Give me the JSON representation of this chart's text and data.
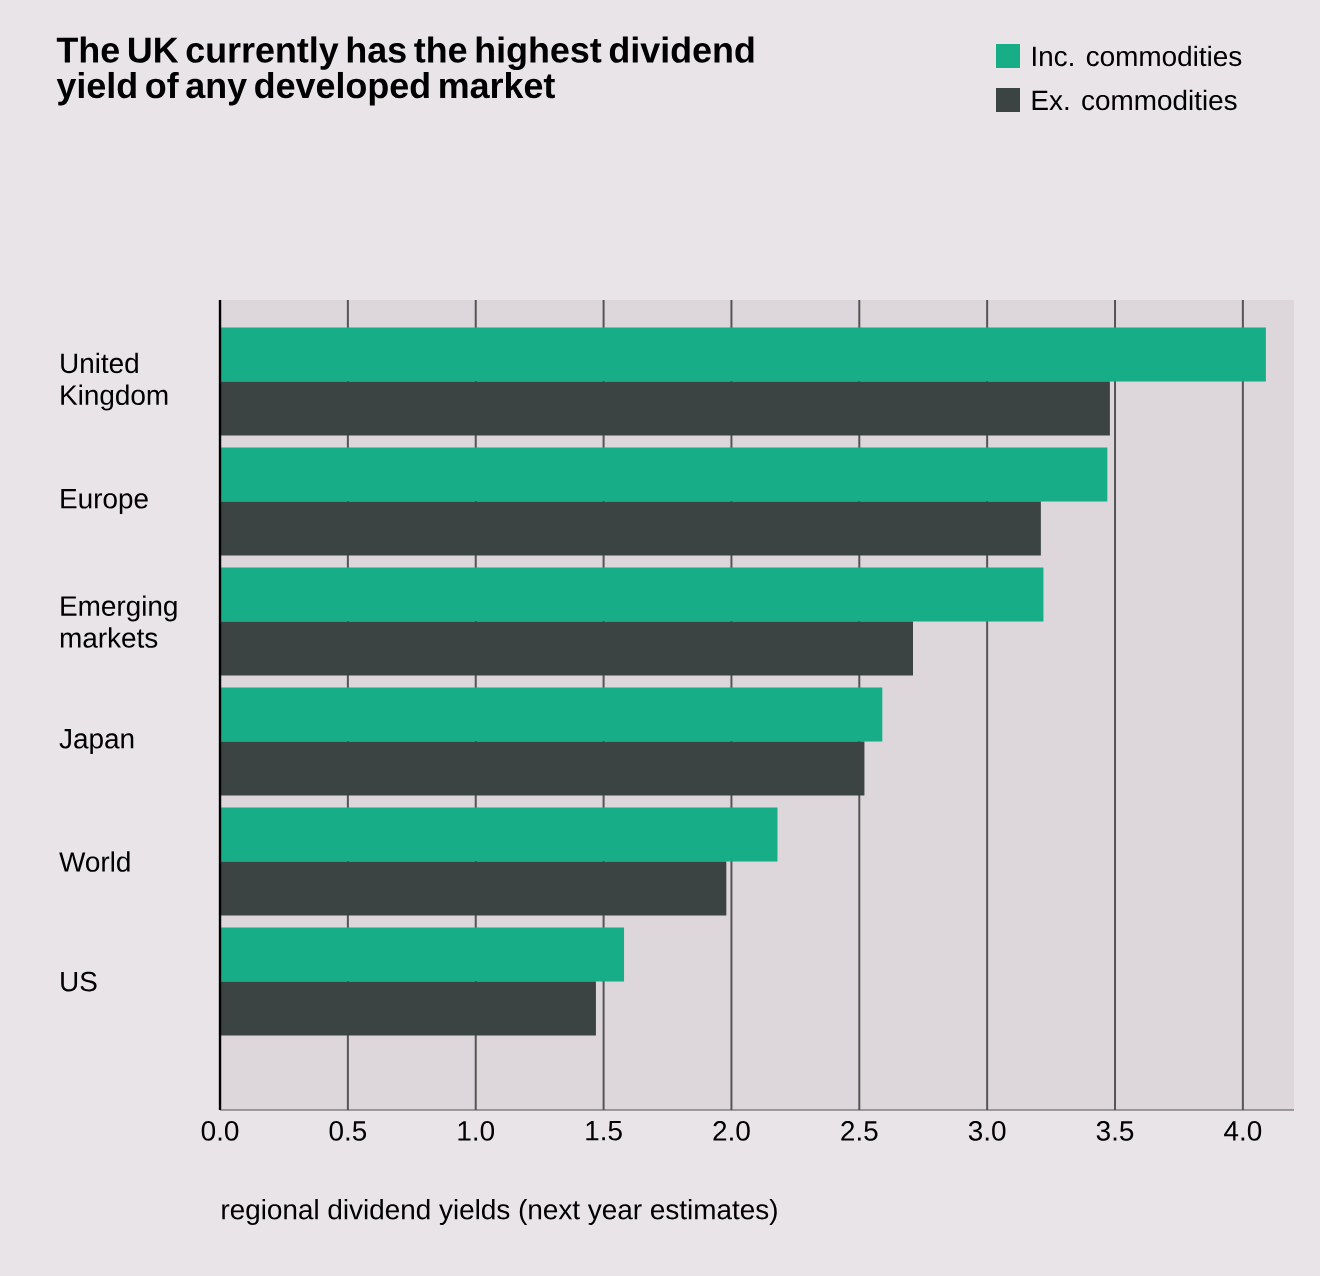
{
  "chart_data": {
    "type": "bar",
    "orientation": "horizontal",
    "title": "The UK currently has the highest dividend yield of any developed market",
    "xlabel": "regional dividend yields (next year estimates)",
    "categories": [
      "United Kingdom",
      "Europe",
      "Emerging markets",
      "Japan",
      "World",
      "US"
    ],
    "series": [
      {
        "name": "Inc. commodities",
        "color": "#17ad87",
        "values": [
          4.09,
          3.47,
          3.22,
          2.59,
          2.18,
          1.58
        ]
      },
      {
        "name": "Ex. commodities",
        "color": "#3b4443",
        "values": [
          3.48,
          3.21,
          2.71,
          2.52,
          1.98,
          1.47
        ]
      }
    ],
    "xlim": [
      0,
      4.2
    ],
    "xticks": [
      {
        "value": 0,
        "label": "0.0"
      },
      {
        "value": 0.5,
        "label": "0.5"
      },
      {
        "value": 1,
        "label": "1.0"
      },
      {
        "value": 1.5,
        "label": "1.5"
      },
      {
        "value": 2,
        "label": "2.0"
      },
      {
        "value": 2.5,
        "label": "2.5"
      },
      {
        "value": 3,
        "label": "3.0"
      },
      {
        "value": 3.5,
        "label": "3.5"
      },
      {
        "value": 4,
        "label": "4.0"
      }
    ],
    "grid": "x",
    "legend": "top right"
  }
}
